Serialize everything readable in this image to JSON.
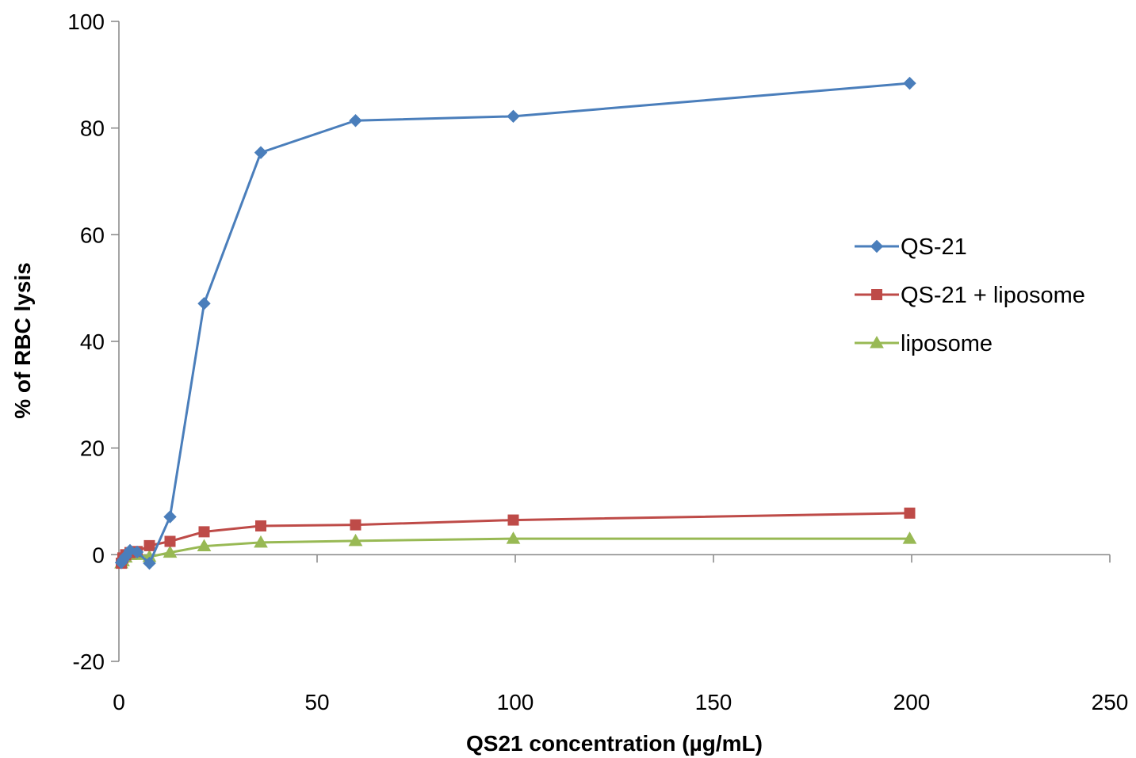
{
  "chart_data": {
    "type": "scatter",
    "title": "",
    "xlabel": "QS21 concentration (µg/mL)",
    "ylabel": "% of RBC lysis",
    "xlim": [
      0,
      250
    ],
    "ylim": [
      -20,
      100
    ],
    "xticks": [
      0,
      50,
      100,
      150,
      200,
      250
    ],
    "yticks": [
      -20,
      0,
      20,
      40,
      60,
      80,
      100
    ],
    "grid": false,
    "legend_position": "right",
    "series": [
      {
        "name": "QS-21",
        "color": "#4a7ebb",
        "marker": "diamond",
        "x": [
          0.6,
          1.0,
          1.7,
          2.8,
          4.6,
          7.7,
          12.9,
          21.5,
          35.8,
          59.7,
          99.5,
          199.5
        ],
        "y": [
          -1.5,
          -1.0,
          -0.3,
          0.8,
          0.5,
          -1.6,
          7.1,
          47.1,
          75.4,
          81.4,
          82.2,
          88.4
        ]
      },
      {
        "name": "QS-21 + liposome",
        "color": "#be4b48",
        "marker": "square",
        "x": [
          0.6,
          1.0,
          1.7,
          2.8,
          4.6,
          7.7,
          12.9,
          21.5,
          35.8,
          59.7,
          99.5,
          199.5
        ],
        "y": [
          -1.6,
          -0.6,
          0.0,
          0.4,
          0.6,
          1.7,
          2.5,
          4.3,
          5.4,
          5.6,
          6.5,
          7.8
        ]
      },
      {
        "name": "liposome",
        "color": "#98b954",
        "marker": "triangle",
        "x": [
          0.6,
          1.0,
          1.7,
          2.8,
          4.6,
          7.7,
          12.9,
          21.5,
          35.8,
          59.7,
          99.5,
          199.5
        ],
        "y": [
          -1.6,
          -1.2,
          -0.5,
          0.0,
          0.0,
          -0.4,
          0.4,
          1.6,
          2.3,
          2.6,
          3.0,
          3.0
        ]
      }
    ]
  }
}
